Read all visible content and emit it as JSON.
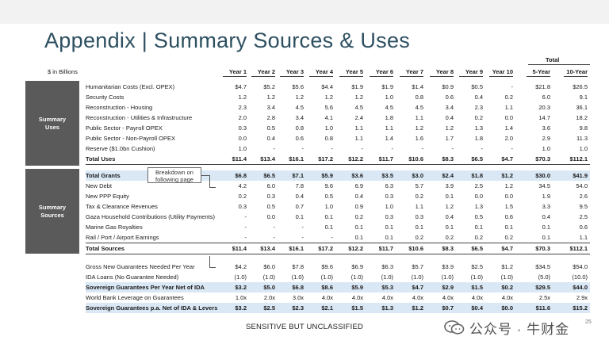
{
  "slide": {
    "title": "Appendix | Summary Sources & Uses",
    "units": "$ in Billions",
    "footer": "SENSITIVE BUT UNCLASSIFIED",
    "page_number": "25",
    "watermark": "公众号 · 牛财金",
    "callout": "Breakdown on following page"
  },
  "header": {
    "total_group": "Total",
    "columns": [
      "Year 1",
      "Year 2",
      "Year 3",
      "Year 4",
      "Year 5",
      "Year 6",
      "Year 7",
      "Year 8",
      "Year 9",
      "Year 10",
      "5-Year",
      "10-Year"
    ]
  },
  "sections": {
    "uses": {
      "label_line1": "Summary",
      "label_line2": "Uses"
    },
    "sources": {
      "label_line1": "Summary",
      "label_line2": "Sources"
    }
  },
  "rows": [
    {
      "label": "Humanitarian Costs (Excl. OPEX)",
      "values": [
        "$4.7",
        "$5.2",
        "$5.6",
        "$4.4",
        "$1.9",
        "$1.9",
        "$1.4",
        "$0.9",
        "$0.5",
        "-",
        "$21.8",
        "$26.5"
      ]
    },
    {
      "label": "Security Costs",
      "values": [
        "1.2",
        "1.2",
        "1.2",
        "1.2",
        "1.2",
        "1.0",
        "0.8",
        "0.6",
        "0.4",
        "0.2",
        "6.0",
        "9.1"
      ]
    },
    {
      "label": "Reconstruction - Housing",
      "values": [
        "2.3",
        "3.4",
        "4.5",
        "5.6",
        "4.5",
        "4.5",
        "4.5",
        "3.4",
        "2.3",
        "1.1",
        "20.3",
        "36.1"
      ]
    },
    {
      "label": "Reconstruction - Utilities & Infrastructure",
      "values": [
        "2.0",
        "2.8",
        "3.4",
        "4.1",
        "2.4",
        "1.8",
        "1.1",
        "0.4",
        "0.2",
        "0.0",
        "14.7",
        "18.2"
      ]
    },
    {
      "label": "Public Sector - Payroll OPEX",
      "values": [
        "0.3",
        "0.5",
        "0.8",
        "1.0",
        "1.1",
        "1.1",
        "1.2",
        "1.2",
        "1.3",
        "1.4",
        "3.6",
        "9.8"
      ]
    },
    {
      "label": "Public Sector - Non-Payroll OPEX",
      "values": [
        "0.0",
        "0.4",
        "0.6",
        "0.8",
        "1.1",
        "1.4",
        "1.6",
        "1.7",
        "1.8",
        "2.0",
        "2.9",
        "11.3"
      ]
    },
    {
      "label": "Reserve ($1.0bn Cushion)",
      "values": [
        "1.0",
        "-",
        "-",
        "-",
        "-",
        "-",
        "-",
        "-",
        "-",
        "-",
        "1.0",
        "1.0"
      ]
    },
    {
      "label": "Total Uses",
      "values": [
        "$11.4",
        "$13.4",
        "$16.1",
        "$17.2",
        "$12.2",
        "$11.7",
        "$10.6",
        "$8.3",
        "$6.5",
        "$4.7",
        "$70.3",
        "$112.1"
      ]
    },
    {
      "label": "Total Grants",
      "values": [
        "$6.8",
        "$6.5",
        "$7.1",
        "$5.9",
        "$3.6",
        "$3.5",
        "$3.0",
        "$2.4",
        "$1.8",
        "$1.2",
        "$30.0",
        "$41.9"
      ]
    },
    {
      "label": "New Debt",
      "values": [
        "4.2",
        "6.0",
        "7.8",
        "9.6",
        "6.9",
        "6.3",
        "5.7",
        "3.9",
        "2.5",
        "1.2",
        "34.5",
        "54.0"
      ]
    },
    {
      "label": "New PPP Equity",
      "values": [
        "0.2",
        "0.3",
        "0.4",
        "0.5",
        "0.4",
        "0.3",
        "0.2",
        "0.1",
        "0.0",
        "0.0",
        "1.9",
        "2.6"
      ]
    },
    {
      "label": "Tax & Clearance Revenues",
      "values": [
        "0.3",
        "0.5",
        "0.7",
        "1.0",
        "0.9",
        "1.0",
        "1.1",
        "1.2",
        "1.3",
        "1.5",
        "3.3",
        "9.5"
      ]
    },
    {
      "label": "Gaza Household Contributions (Utility Payments)",
      "values": [
        "-",
        "0.0",
        "0.1",
        "0.1",
        "0.2",
        "0.3",
        "0.3",
        "0.4",
        "0.5",
        "0.6",
        "0.4",
        "2.5"
      ]
    },
    {
      "label": "Marine Gas Royalties",
      "values": [
        "-",
        "-",
        "-",
        "0.1",
        "0.1",
        "0.1",
        "0.1",
        "0.1",
        "0.1",
        "0.1",
        "0.1",
        "0.6"
      ]
    },
    {
      "label": "Rail / Port / Airport Earnings",
      "values": [
        "-",
        "-",
        "-",
        "-",
        "0.1",
        "0.1",
        "0.2",
        "0.2",
        "0.2",
        "0.2",
        "0.1",
        "1.1"
      ]
    },
    {
      "label": "Total Sources",
      "values": [
        "$11.4",
        "$13.4",
        "$16.1",
        "$17.2",
        "$12.2",
        "$11.7",
        "$10.6",
        "$8.3",
        "$6.5",
        "$4.7",
        "$70.3",
        "$112.1"
      ]
    },
    {
      "label": "Gross New Guarantees Needed Per Year",
      "values": [
        "$4.2",
        "$6.0",
        "$7.8",
        "$9.6",
        "$6.9",
        "$6.3",
        "$5.7",
        "$3.9",
        "$2.5",
        "$1.2",
        "$34.5",
        "$54.0"
      ]
    },
    {
      "label": "IDA Loans (No Guarantee Needed)",
      "values": [
        "(1.0)",
        "(1.0)",
        "(1.0)",
        "(1.0)",
        "(1.0)",
        "(1.0)",
        "(1.0)",
        "(1.0)",
        "(1.0)",
        "(1.0)",
        "(5.0)",
        "(10.0)"
      ]
    },
    {
      "label": "Sovereign Guarantees Per Year Net of IDA",
      "values": [
        "$3.2",
        "$5.0",
        "$6.8",
        "$8.6",
        "$5.9",
        "$5.3",
        "$4.7",
        "$2.9",
        "$1.5",
        "$0.2",
        "$29.5",
        "$44.0"
      ]
    },
    {
      "label": "World Bank Leverage on Guarantees",
      "values": [
        "1.0x",
        "2.0x",
        "3.0x",
        "4.0x",
        "4.0x",
        "4.0x",
        "4.0x",
        "4.0x",
        "4.0x",
        "4.0x",
        "2.5x",
        "2.9x"
      ]
    },
    {
      "label": "Sovereign Guarantees p.a. Net of IDA & Levers",
      "values": [
        "$3.2",
        "$2.5",
        "$2.3",
        "$2.1",
        "$1.5",
        "$1.3",
        "$1.2",
        "$0.7",
        "$0.4",
        "$0.0",
        "$11.6",
        "$15.2"
      ]
    }
  ]
}
